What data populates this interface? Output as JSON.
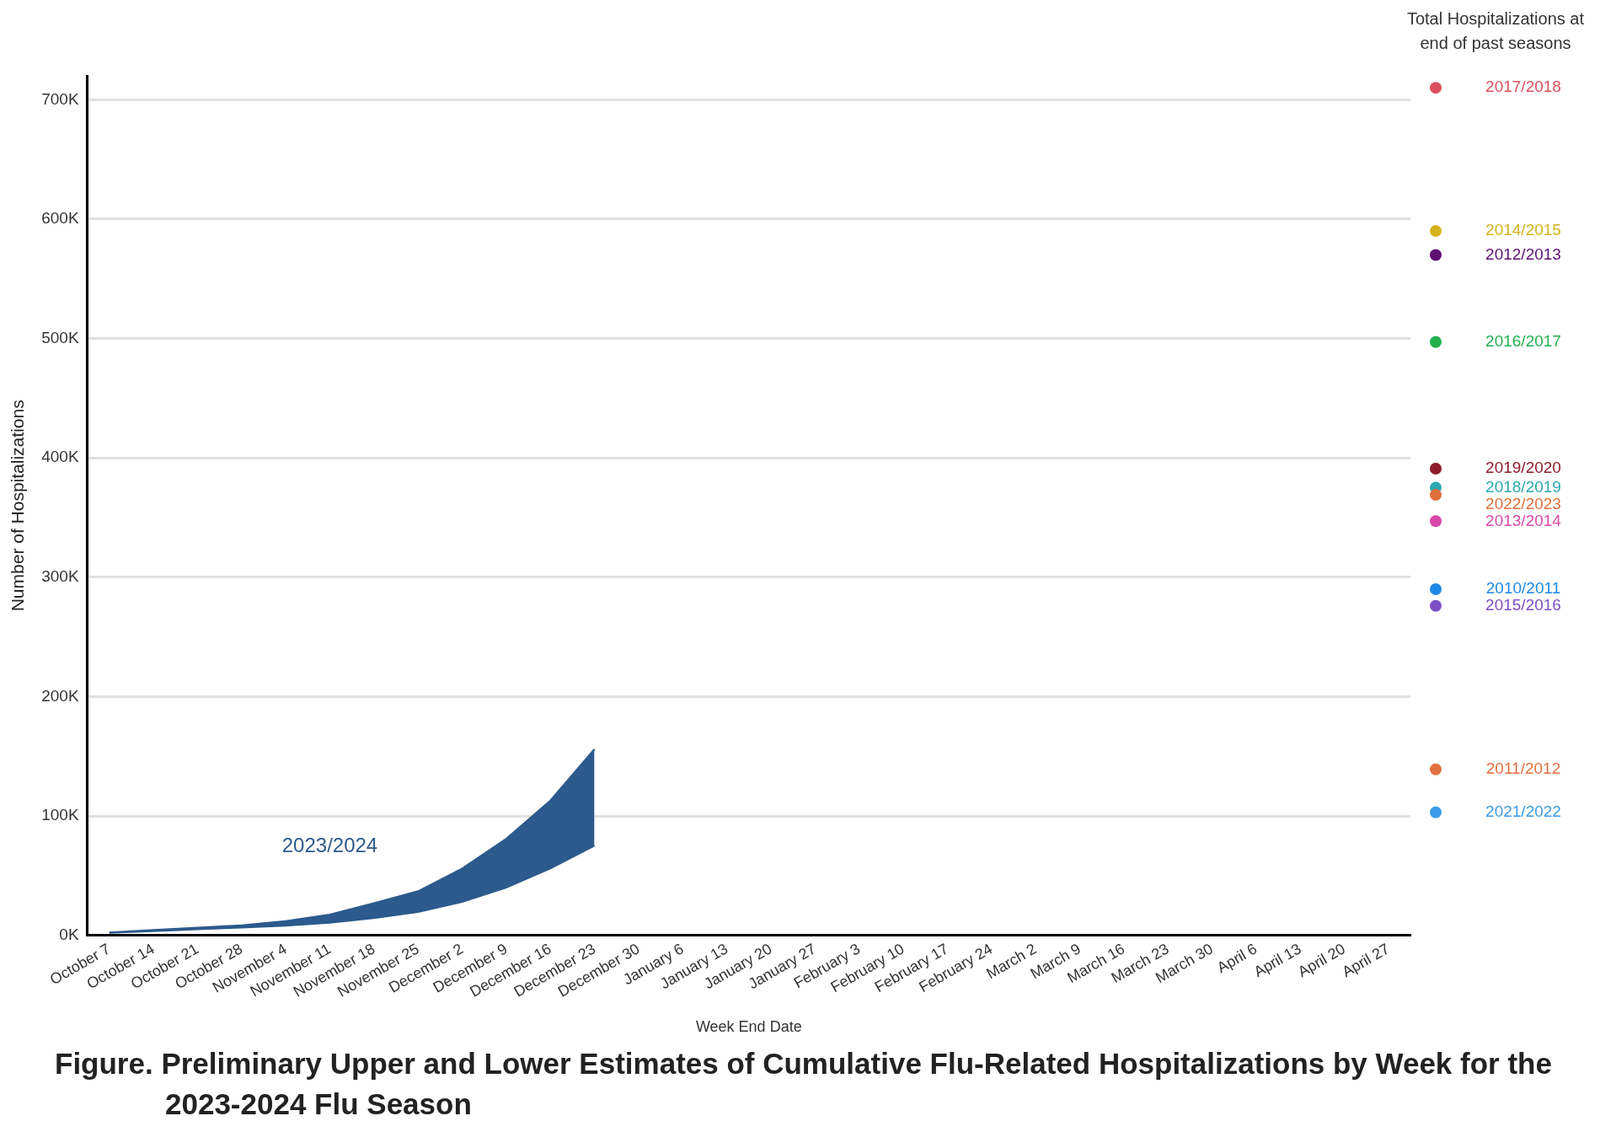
{
  "chart_data": {
    "type": "line",
    "title": "Figure. Preliminary Upper and Lower Estimates of Cumulative Flu-Related Hospitalizations by Week for the 2023-2024 Flu Season",
    "x_label": "Week End Date",
    "y_label": "Number of Hospitalizations",
    "categories": [
      "October 7",
      "October 14",
      "October 21",
      "October 28",
      "November 4",
      "November 11",
      "November 18",
      "November 25",
      "December 2",
      "December 9",
      "December 16",
      "December 23",
      "December 30",
      "January 6",
      "January 13",
      "January 20",
      "January 27",
      "February 3",
      "February 10",
      "February 17",
      "February 24",
      "March 2",
      "March 9",
      "March 16",
      "March 23",
      "March 30",
      "April 6",
      "April 13",
      "April 20",
      "April 27"
    ],
    "series": [
      {
        "name": "2023/2024",
        "type": "area",
        "color": "#2c5a8c",
        "values": [
          2500,
          4500,
          6500,
          8500,
          12000,
          17500,
          27000,
          37000,
          56000,
          81000,
          113000,
          156000,
          null,
          null,
          null,
          null,
          null,
          null,
          null,
          null,
          null,
          null,
          null,
          null,
          null,
          null,
          null,
          null,
          null,
          null
        ],
        "lower": [
          2000,
          3500,
          5000,
          6500,
          8000,
          10500,
          14500,
          19500,
          28000,
          40000,
          56000,
          75000,
          null,
          null,
          null,
          null,
          null,
          null,
          null,
          null,
          null,
          null,
          null,
          null,
          null,
          null,
          null,
          null,
          null,
          null
        ]
      }
    ],
    "ylim": [
      0,
      720000
    ],
    "yticks": [
      {
        "value": 0,
        "label": "0K"
      },
      {
        "value": 100000,
        "label": "100K"
      },
      {
        "value": 200000,
        "label": "200K"
      },
      {
        "value": 300000,
        "label": "300K"
      },
      {
        "value": 400000,
        "label": "400K"
      },
      {
        "value": 500000,
        "label": "500K"
      },
      {
        "value": 600000,
        "label": "600K"
      },
      {
        "value": 700000,
        "label": "700K"
      }
    ],
    "grid": true,
    "legend": "none",
    "past_seasons": {
      "title": "Total Hospitalizations at end of past seasons",
      "points": [
        {
          "name": "2017/2018",
          "color": "#d94f5c",
          "value": 710000
        },
        {
          "name": "2014/2015",
          "color": "#d6b21a",
          "value": 590000
        },
        {
          "name": "2012/2013",
          "color": "#5e0f74",
          "value": 570000
        },
        {
          "name": "2016/2017",
          "color": "#22b14c",
          "value": 497000
        },
        {
          "name": "2019/2020",
          "color": "#8e1b2a",
          "value": 391000
        },
        {
          "name": "2018/2019",
          "color": "#2aa9b0",
          "value": 375000
        },
        {
          "name": "2022/2023",
          "color": "#e0703a",
          "value": 369000
        },
        {
          "name": "2013/2014",
          "color": "#d94aa8",
          "value": 347000
        },
        {
          "name": "2010/2011",
          "color": "#1e88e5",
          "value": 290000
        },
        {
          "name": "2015/2016",
          "color": "#7e4fc6",
          "value": 276000
        },
        {
          "name": "2011/2012",
          "color": "#e07040",
          "value": 139000
        },
        {
          "name": "2021/2022",
          "color": "#3b9be8",
          "value": 103000
        }
      ]
    }
  }
}
